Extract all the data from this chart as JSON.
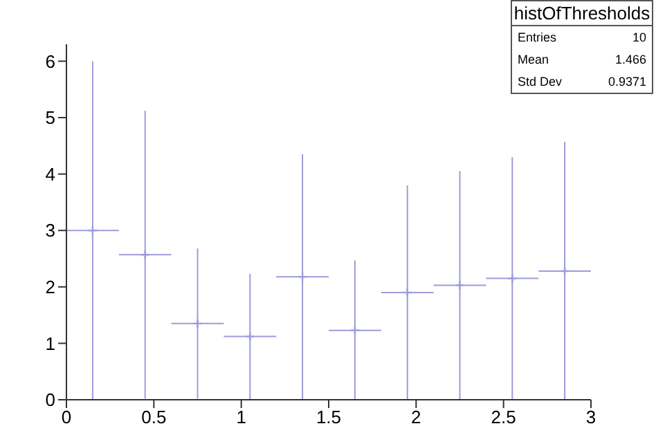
{
  "chart_data": {
    "type": "scatter",
    "x": [
      0.15,
      0.45,
      0.75,
      1.05,
      1.35,
      1.65,
      1.95,
      2.25,
      2.55,
      2.85
    ],
    "values": [
      3.0,
      2.57,
      1.35,
      1.12,
      2.18,
      1.23,
      1.9,
      2.03,
      2.15,
      2.28
    ],
    "errors": [
      3.0,
      2.55,
      1.33,
      1.11,
      2.17,
      1.24,
      1.9,
      2.02,
      2.15,
      2.29
    ],
    "xerrors": [
      0.15,
      0.15,
      0.15,
      0.15,
      0.15,
      0.15,
      0.15,
      0.15,
      0.15,
      0.15
    ],
    "color": "#9c9cdc",
    "marker": "cross",
    "xlim": [
      0,
      3
    ],
    "xticks": [
      0,
      0.5,
      1,
      1.5,
      2,
      2.5,
      3
    ],
    "ylim": [
      0,
      6.3
    ],
    "yticks": [
      0,
      1,
      2,
      3,
      4,
      5,
      6
    ],
    "grid": false,
    "legend": false,
    "annotations": [
      "histOfThresholds",
      "Entries",
      "10",
      "Mean",
      "1.466",
      "Std Dev",
      "0.9371"
    ]
  }
}
